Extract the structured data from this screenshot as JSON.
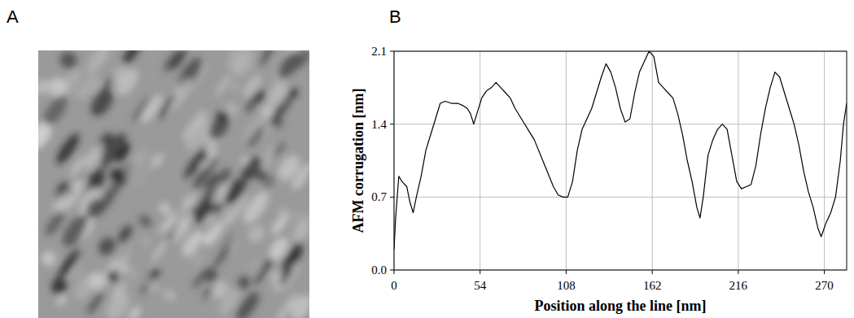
{
  "image_panel": {
    "label": "A"
  },
  "chart_data": {
    "type": "line",
    "label": "B",
    "xlabel": "Position along the line [nm]",
    "ylabel": "AFM corrugation [nm]",
    "x": [
      0,
      1,
      3,
      5,
      8,
      10,
      12,
      14,
      17,
      20,
      23,
      26,
      29,
      32,
      36,
      40,
      43,
      46,
      48,
      50,
      52,
      55,
      58,
      61,
      64,
      67,
      70,
      73,
      76,
      80,
      84,
      88,
      92,
      96,
      100,
      103,
      106,
      109,
      112,
      115,
      118,
      121,
      124,
      127,
      130,
      133,
      136,
      139,
      142,
      145,
      148,
      151,
      154,
      157,
      160,
      163,
      166,
      169,
      172,
      175,
      178,
      181,
      184,
      187,
      190,
      192,
      194,
      197,
      200,
      203,
      206,
      209,
      212,
      215,
      218,
      221,
      224,
      227,
      230,
      233,
      236,
      239,
      242,
      245,
      248,
      251,
      254,
      257,
      260,
      263,
      266,
      268,
      271,
      274,
      277,
      280,
      282,
      284
    ],
    "values": [
      0.2,
      0.5,
      0.9,
      0.85,
      0.8,
      0.65,
      0.55,
      0.7,
      0.9,
      1.15,
      1.3,
      1.45,
      1.6,
      1.62,
      1.6,
      1.6,
      1.58,
      1.55,
      1.5,
      1.4,
      1.5,
      1.65,
      1.72,
      1.75,
      1.8,
      1.75,
      1.7,
      1.65,
      1.55,
      1.45,
      1.35,
      1.25,
      1.1,
      0.95,
      0.8,
      0.72,
      0.7,
      0.7,
      0.85,
      1.15,
      1.35,
      1.45,
      1.55,
      1.7,
      1.85,
      1.98,
      1.9,
      1.75,
      1.55,
      1.42,
      1.45,
      1.7,
      1.9,
      2.0,
      2.1,
      2.05,
      1.8,
      1.75,
      1.7,
      1.65,
      1.5,
      1.3,
      1.05,
      0.85,
      0.6,
      0.5,
      0.7,
      1.1,
      1.25,
      1.35,
      1.4,
      1.35,
      1.1,
      0.85,
      0.78,
      0.8,
      0.82,
      1.0,
      1.3,
      1.55,
      1.75,
      1.9,
      1.85,
      1.7,
      1.55,
      1.4,
      1.2,
      0.95,
      0.75,
      0.6,
      0.4,
      0.32,
      0.45,
      0.55,
      0.7,
      1.05,
      1.4,
      1.6
    ],
    "color": "#000000",
    "xlim": [
      0,
      284
    ],
    "xticks": [
      0,
      54,
      108,
      162,
      216,
      270
    ],
    "ylim": [
      0,
      2.1
    ],
    "yticks": [
      {
        "value": 0,
        "label": "0.0"
      },
      0.7,
      1.4,
      2.1
    ],
    "grid": true
  }
}
